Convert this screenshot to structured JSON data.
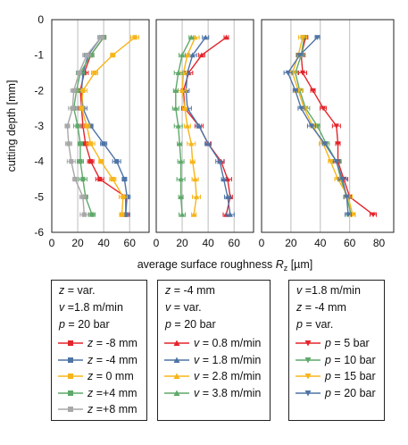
{
  "chart_data": {
    "type": "line",
    "orientation": "x-value / y-depth",
    "ylabel": "cutting depth [mm]",
    "xlabel_parts": {
      "prefix": "average surface roughness ",
      "var": "R",
      "sub": "z",
      "suffix": " [µm]"
    },
    "ylim": [
      -6,
      0
    ],
    "yticks": [
      "0",
      "-1",
      "-2",
      "-3",
      "-4",
      "-5",
      "-6"
    ],
    "y": [
      -0.5,
      -1,
      -1.5,
      -2,
      -2.5,
      -3,
      -3.5,
      -4,
      -4.5,
      -5,
      -5.5
    ],
    "panels": [
      {
        "xlim": [
          0,
          75
        ],
        "xticks": [
          "0",
          "20",
          "40",
          "60"
        ],
        "gridlines": [
          20,
          40,
          60
        ],
        "legend": {
          "header": [
            {
              "var": "z",
              "text": " = var."
            },
            {
              "var": "v",
              "text": " =1.8 m/min"
            },
            {
              "var": "p",
              "text": " = 20 bar"
            }
          ],
          "var": "z"
        },
        "series": [
          {
            "name": "= -8 mm",
            "color": "#e3252b",
            "marker": "square",
            "values": [
              40,
              30,
              25,
              22,
              23,
              24,
              26,
              30,
              37,
              57,
              57
            ]
          },
          {
            "name": "= -4 mm",
            "color": "#4e74a6",
            "marker": "square",
            "values": [
              38,
              28,
              24,
              23,
              24,
              30,
              40,
              50,
              56,
              58,
              57
            ]
          },
          {
            "name": "= 0 mm",
            "color": "#f7b51a",
            "marker": "square",
            "values": [
              64,
              47,
              33,
              24,
              23,
              27,
              30,
              38,
              47,
              55,
              54
            ]
          },
          {
            "name": "=+4 mm",
            "color": "#5ea96a",
            "marker": "square",
            "values": [
              40,
              30,
              22,
              19,
              17,
              20,
              22,
              22,
              24,
              26,
              31
            ]
          },
          {
            "name": "=+8 mm",
            "color": "#a8a8a8",
            "marker": "square",
            "values": [
              38,
              27,
              21,
              17,
              16,
              12,
              13,
              15,
              18,
              24,
              25
            ]
          }
        ]
      },
      {
        "xlim": [
          0,
          75
        ],
        "xticks": [
          "0",
          "20",
          "40",
          "60"
        ],
        "gridlines": [
          20,
          40,
          60
        ],
        "legend": {
          "header": [
            {
              "var": "z",
              "text": " = -4 mm"
            },
            {
              "var": "v",
              "text": " = var."
            },
            {
              "var": "p",
              "text": " = 20 bar"
            }
          ],
          "var": "v"
        },
        "series": [
          {
            "name": "= 0.8 m/min",
            "color": "#e3252b",
            "marker": "triangle-up",
            "values": [
              54,
              35,
              25,
              21,
              22,
              33,
              40,
              50,
              55,
              57,
              54
            ]
          },
          {
            "name": "= 1.8 m/min",
            "color": "#4e74a6",
            "marker": "triangle-up",
            "values": [
              38,
              28,
              24,
              23,
              24,
              33,
              40,
              49,
              52,
              55,
              57
            ]
          },
          {
            "name": "= 2.8 m/min",
            "color": "#f7b51a",
            "marker": "triangle-up",
            "values": [
              30,
              24,
              21,
              20,
              22,
              24,
              27,
              28,
              30,
              31,
              29
            ]
          },
          {
            "name": "= 3.8 m/min",
            "color": "#5ea96a",
            "marker": "triangle-up",
            "values": [
              27,
              20,
              17,
              15,
              15,
              17,
              18,
              19,
              19,
              19,
              20
            ]
          }
        ]
      },
      {
        "xlim": [
          0,
          90
        ],
        "xticks": [
          "0",
          "20",
          "40",
          "60",
          "80"
        ],
        "gridlines": [
          20,
          40,
          60
        ],
        "legend": {
          "header": [
            {
              "var": "v",
              "text": " =1.8 m/min"
            },
            {
              "var": "z",
              "text": " = -4 mm"
            },
            {
              "var": "p",
              "text": " = var."
            }
          ],
          "var": "p"
        },
        "series": [
          {
            "name": "= 5 bar",
            "color": "#e3252b",
            "marker": "triangle-down",
            "values": [
              30,
              27,
              28,
              35,
              42,
              51,
              52,
              52,
              56,
              60,
              76
            ]
          },
          {
            "name": "= 10 bar",
            "color": "#5ea96a",
            "marker": "triangle-down",
            "values": [
              29,
              27,
              23,
              26,
              30,
              38,
              44,
              51,
              54,
              58,
              61
            ]
          },
          {
            "name": "= 15 bar",
            "color": "#f7b51a",
            "marker": "triangle-down",
            "values": [
              28,
              25,
              21,
              25,
              29,
              35,
              42,
              47,
              52,
              59,
              62
            ]
          },
          {
            "name": "= 20 bar",
            "color": "#4e74a6",
            "marker": "triangle-down",
            "values": [
              38,
              26,
              18,
              23,
              27,
              34,
              43,
              51,
              55,
              58,
              59
            ]
          }
        ]
      }
    ]
  }
}
